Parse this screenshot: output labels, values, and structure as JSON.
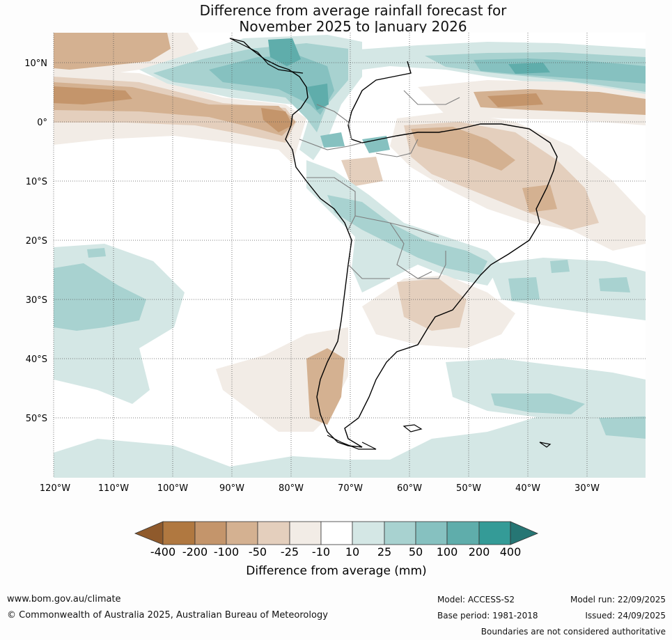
{
  "title": {
    "line1": "Difference from average rainfall forecast for",
    "line2": "November 2025 to January 2026"
  },
  "map": {
    "lat_labels": [
      "10°N",
      "0°",
      "10°S",
      "20°S",
      "30°S",
      "40°S",
      "50°S"
    ],
    "lon_labels": [
      "120°W",
      "110°W",
      "100°W",
      "90°W",
      "80°W",
      "70°W",
      "60°W",
      "50°W",
      "40°W",
      "30°W"
    ],
    "colors": {
      "border": "#000000",
      "internal_border": "#7d7d7d",
      "grid": "#555555"
    }
  },
  "colorbar": {
    "title": "Difference from average (mm)",
    "tick_labels": [
      "-400",
      "-200",
      "-100",
      "-50",
      "-25",
      "-10",
      "10",
      "25",
      "50",
      "100",
      "200",
      "400"
    ],
    "colors": [
      "#8f5a2c",
      "#b07840",
      "#c4956b",
      "#d4b191",
      "#e4cfbd",
      "#f2ece6",
      "#ffffff",
      "#d4e7e5",
      "#a8d2d0",
      "#86c1c0",
      "#5fadab",
      "#349b97",
      "#267674"
    ]
  },
  "footer": {
    "website": "www.bom.gov.au/climate",
    "copyright": "© Commonwealth of Australia 2025, Australian Bureau of Meteorology",
    "model": "Model: ACCESS-S2",
    "base_period": "Base period: 1981-2018",
    "model_run": "Model run: 22/09/2025",
    "issued": "Issued: 24/09/2025",
    "boundaries_note": "Boundaries are not considered authoritative"
  }
}
